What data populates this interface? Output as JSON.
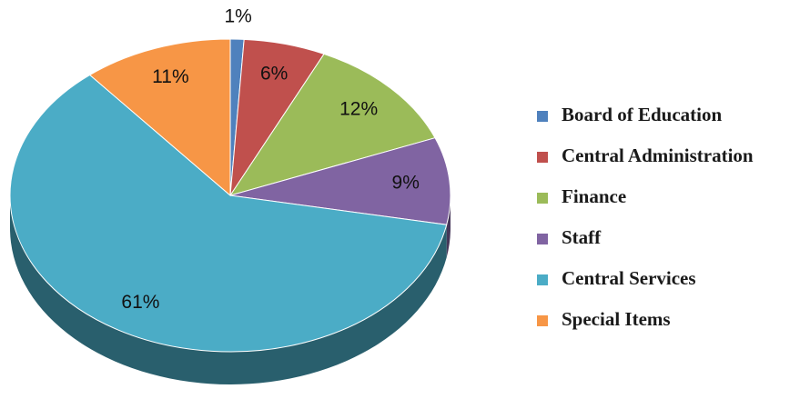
{
  "chart_data": {
    "type": "pie",
    "categories": [
      "Board of Education",
      "Central Administration",
      "Finance",
      "Staff",
      "Central Services",
      "Special Items"
    ],
    "values": [
      1,
      6,
      12,
      9,
      61,
      11
    ],
    "value_labels": [
      "1%",
      "6%",
      "12%",
      "9%",
      "61%",
      "11%"
    ],
    "colors": [
      "#4f81bd",
      "#c0504d",
      "#9bbb59",
      "#8064a2",
      "#4bacc6",
      "#f79646"
    ],
    "legend": "right"
  }
}
